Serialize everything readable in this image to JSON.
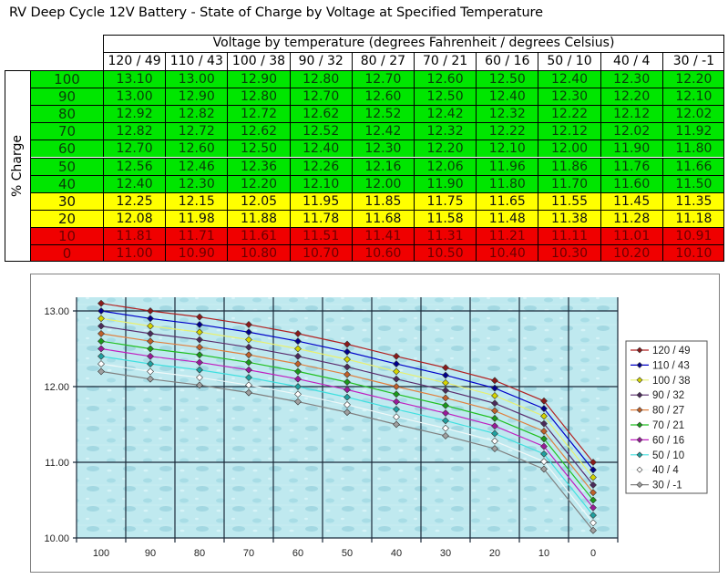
{
  "title": "RV Deep Cycle 12V Battery - State of Charge by Voltage at Specified Temperature",
  "table": {
    "group_header": "Voltage by temperature (degrees Fahrenheit / degrees Celsius)",
    "row_axis_label": "% Charge",
    "columns": [
      "120 / 49",
      "110 / 43",
      "100 / 38",
      "90 / 32",
      "80 / 27",
      "70 / 21",
      "60 / 16",
      "50 / 10",
      "40 / 4",
      "30 / -1"
    ],
    "rows": [
      {
        "charge": "100",
        "zone": "green",
        "values": [
          "13.10",
          "13.00",
          "12.90",
          "12.80",
          "12.70",
          "12.60",
          "12.50",
          "12.40",
          "12.30",
          "12.20"
        ]
      },
      {
        "charge": "90",
        "zone": "green",
        "values": [
          "13.00",
          "12.90",
          "12.80",
          "12.70",
          "12.60",
          "12.50",
          "12.40",
          "12.30",
          "12.20",
          "12.10"
        ]
      },
      {
        "charge": "80",
        "zone": "green",
        "values": [
          "12.92",
          "12.82",
          "12.72",
          "12.62",
          "12.52",
          "12.42",
          "12.32",
          "12.22",
          "12.12",
          "12.02"
        ]
      },
      {
        "charge": "70",
        "zone": "green",
        "values": [
          "12.82",
          "12.72",
          "12.62",
          "12.52",
          "12.42",
          "12.32",
          "12.22",
          "12.12",
          "12.02",
          "11.92"
        ]
      },
      {
        "charge": "60",
        "zone": "green",
        "values": [
          "12.70",
          "12.60",
          "12.50",
          "12.40",
          "12.30",
          "12.20",
          "12.10",
          "12.00",
          "11.90",
          "11.80"
        ]
      },
      {
        "charge": "50",
        "zone": "green",
        "values": [
          "12.56",
          "12.46",
          "12.36",
          "12.26",
          "12.16",
          "12.06",
          "11.96",
          "11.86",
          "11.76",
          "11.66"
        ]
      },
      {
        "charge": "40",
        "zone": "green",
        "values": [
          "12.40",
          "12.30",
          "12.20",
          "12.10",
          "12.00",
          "11.90",
          "11.80",
          "11.70",
          "11.60",
          "11.50"
        ]
      },
      {
        "charge": "30",
        "zone": "yellow",
        "values": [
          "12.25",
          "12.15",
          "12.05",
          "11.95",
          "11.85",
          "11.75",
          "11.65",
          "11.55",
          "11.45",
          "11.35"
        ]
      },
      {
        "charge": "20",
        "zone": "yellow",
        "values": [
          "12.08",
          "11.98",
          "11.88",
          "11.78",
          "11.68",
          "11.58",
          "11.48",
          "11.38",
          "11.28",
          "11.18"
        ]
      },
      {
        "charge": "10",
        "zone": "red",
        "values": [
          "11.81",
          "11.71",
          "11.61",
          "11.51",
          "11.41",
          "11.31",
          "11.21",
          "11.11",
          "11.01",
          "10.91"
        ]
      },
      {
        "charge": "0",
        "zone": "red",
        "values": [
          "11.00",
          "10.90",
          "10.80",
          "10.70",
          "10.60",
          "10.50",
          "10.40",
          "10.30",
          "10.20",
          "10.10"
        ]
      }
    ],
    "zone_colors": {
      "green": {
        "bg": "#00e600",
        "fg": "#0a3d0a"
      },
      "yellow": {
        "bg": "#ffff00",
        "fg": "#111111"
      },
      "red": {
        "bg": "#f00000",
        "fg": "#6b0000"
      }
    }
  },
  "chart_data": {
    "type": "line",
    "title": "",
    "xlabel": "",
    "ylabel": "",
    "categories": [
      "100",
      "90",
      "80",
      "70",
      "60",
      "50",
      "40",
      "30",
      "20",
      "10",
      "0"
    ],
    "yticks": [
      "13.00",
      "12.00",
      "11.00",
      "10.00"
    ],
    "ylim": [
      10.0,
      13.2
    ],
    "grid": true,
    "legend_position": "right",
    "series": [
      {
        "name": "120 / 49",
        "color": "#b22222",
        "marker": "#8b1a1a",
        "values": [
          13.1,
          13.0,
          12.92,
          12.82,
          12.7,
          12.56,
          12.4,
          12.25,
          12.08,
          11.81,
          11.0
        ]
      },
      {
        "name": "110 / 43",
        "color": "#0000c8",
        "marker": "#00008b",
        "values": [
          13.0,
          12.9,
          12.82,
          12.72,
          12.6,
          12.46,
          12.3,
          12.15,
          11.98,
          11.71,
          10.9
        ]
      },
      {
        "name": "100 / 38",
        "color": "#e8f070",
        "marker": "#d4d400",
        "values": [
          12.9,
          12.8,
          12.72,
          12.62,
          12.5,
          12.36,
          12.2,
          12.05,
          11.88,
          11.61,
          10.8
        ]
      },
      {
        "name": "90 / 32",
        "color": "#5a2d6e",
        "marker": "#4a2a5a",
        "values": [
          12.8,
          12.7,
          12.62,
          12.52,
          12.4,
          12.26,
          12.1,
          11.95,
          11.78,
          11.51,
          10.7
        ]
      },
      {
        "name": "80 / 27",
        "color": "#e08040",
        "marker": "#c0602a",
        "values": [
          12.7,
          12.6,
          12.52,
          12.42,
          12.3,
          12.16,
          12.0,
          11.85,
          11.68,
          11.41,
          10.6
        ]
      },
      {
        "name": "70 / 21",
        "color": "#22c022",
        "marker": "#1a9a1a",
        "values": [
          12.6,
          12.5,
          12.42,
          12.32,
          12.2,
          12.06,
          11.9,
          11.75,
          11.58,
          11.31,
          10.5
        ]
      },
      {
        "name": "60 / 16",
        "color": "#c020c0",
        "marker": "#9a1a9a",
        "values": [
          12.5,
          12.4,
          12.32,
          12.22,
          12.1,
          11.96,
          11.8,
          11.65,
          11.48,
          11.21,
          10.4
        ]
      },
      {
        "name": "50 / 10",
        "color": "#40e0e0",
        "marker": "#20a0a0",
        "values": [
          12.4,
          12.3,
          12.22,
          12.12,
          12.0,
          11.86,
          11.7,
          11.55,
          11.38,
          11.11,
          10.3
        ]
      },
      {
        "name": "40 / 4",
        "color": "#f0f8f8",
        "marker": "#ffffff",
        "values": [
          12.3,
          12.2,
          12.12,
          12.02,
          11.9,
          11.76,
          11.6,
          11.45,
          11.28,
          11.01,
          10.2
        ]
      },
      {
        "name": "30 / -1",
        "color": "#808080",
        "marker": "#a0a0a0",
        "values": [
          12.2,
          12.1,
          12.02,
          11.92,
          11.8,
          11.66,
          11.5,
          11.35,
          11.18,
          10.91,
          10.1
        ]
      }
    ]
  }
}
